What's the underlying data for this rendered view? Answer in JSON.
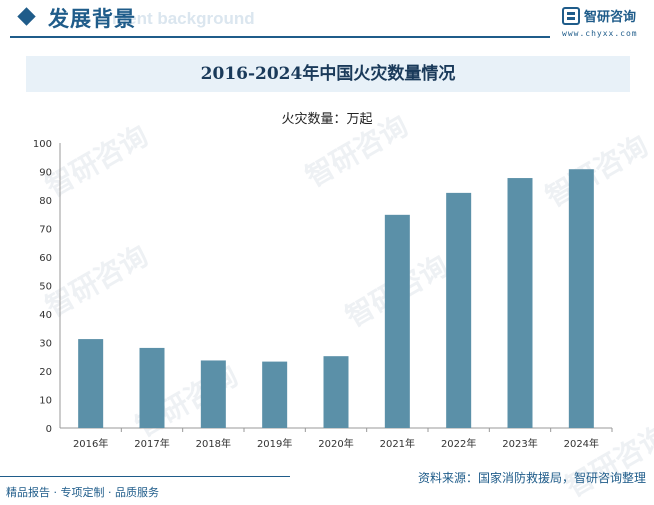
{
  "header": {
    "section_title": "发展背景",
    "section_title_en": "ment background",
    "brand_name": "智研咨询",
    "brand_url": "www.chyxx.com"
  },
  "colors": {
    "accent": "#1f5c8a",
    "bar": "#5b90a8",
    "band": "#e8f1f8"
  },
  "icons": {
    "section_marker": "diamond-icon",
    "brand_logo": "brand-logo-icon"
  },
  "watermark_text": "智研咨询",
  "chart_data": {
    "type": "bar",
    "title": "2016-2024年中国火灾数量情况",
    "series_label": "火灾数量：万起",
    "categories": [
      "2016年",
      "2017年",
      "2018年",
      "2019年",
      "2020年",
      "2021年",
      "2022年",
      "2023年",
      "2024年"
    ],
    "values": [
      31.2,
      28.1,
      23.7,
      23.3,
      25.2,
      74.8,
      82.5,
      87.7,
      90.8
    ],
    "ylim": [
      0,
      100
    ],
    "yticks": [
      0,
      10,
      20,
      30,
      40,
      50,
      60,
      70,
      80,
      90,
      100
    ],
    "grid": false,
    "legend": "none"
  },
  "footer": {
    "left": "精品报告 · 专项定制 · 品质服务",
    "right": "资料来源：国家消防救援局，智研咨询整理"
  }
}
